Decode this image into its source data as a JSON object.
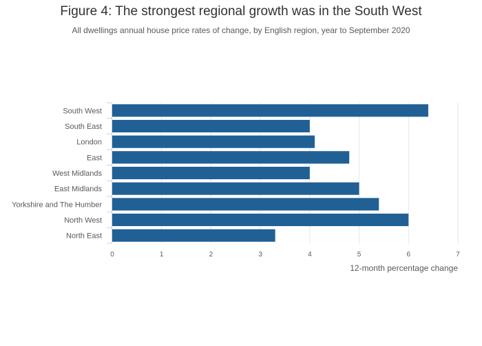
{
  "chart_data": {
    "type": "bar",
    "orientation": "horizontal",
    "title": "Figure 4: The strongest regional growth was in the South West",
    "subtitle": "All dwellings annual house price rates of change, by English region, year to September 2020",
    "xlabel": "12-month percentage change",
    "ylabel": "",
    "categories": [
      "South West",
      "South East",
      "London",
      "East",
      "West Midlands",
      "East Midlands",
      "Yorkshire and The Humber",
      "North West",
      "North East"
    ],
    "values": [
      6.4,
      4.0,
      4.1,
      4.8,
      4.0,
      5.0,
      5.4,
      6.0,
      3.3
    ],
    "xlim": [
      0,
      7
    ],
    "xticks": [
      0,
      1,
      2,
      3,
      4,
      5,
      6,
      7
    ],
    "grid": true,
    "bar_color": "#206095",
    "grid_color": "#e5e5e5",
    "legend": "none"
  }
}
